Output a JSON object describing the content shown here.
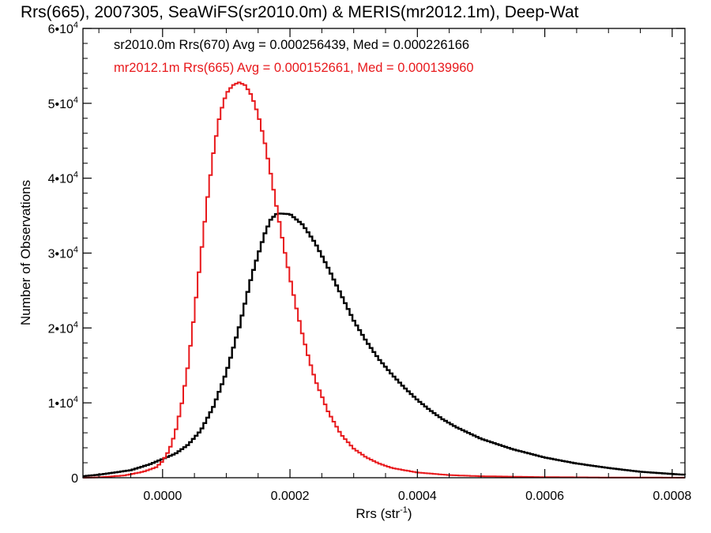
{
  "chart_data": {
    "type": "line",
    "title": "Rrs(665), 2007305, SeaWiFS(sr2010.0m) & MERIS(mr2012.1m), Deep-Wat",
    "xlabel": "Rrs (str",
    "xlabel_sup": "-1",
    "xlabel_end": ")",
    "ylabel": "Number of Observations",
    "xlim": [
      -0.000125,
      0.00082
    ],
    "ylim": [
      0,
      60000
    ],
    "grid": false,
    "x_ticks": [
      {
        "value": 0.0,
        "label": "0.0000"
      },
      {
        "value": 0.0002,
        "label": "0.0002"
      },
      {
        "value": 0.0004,
        "label": "0.0004"
      },
      {
        "value": 0.0006,
        "label": "0.0006"
      },
      {
        "value": 0.0008,
        "label": "0.0008"
      }
    ],
    "y_ticks": [
      {
        "value": 0,
        "label": "0",
        "exp": ""
      },
      {
        "value": 10000,
        "label": "1•10",
        "exp": "4"
      },
      {
        "value": 20000,
        "label": "2•10",
        "exp": "4"
      },
      {
        "value": 30000,
        "label": "3•10",
        "exp": "4"
      },
      {
        "value": 40000,
        "label": "4•10",
        "exp": "4"
      },
      {
        "value": 50000,
        "label": "5•10",
        "exp": "4"
      },
      {
        "value": 60000,
        "label": "6•10",
        "exp": "4"
      }
    ],
    "annotations": [
      {
        "text": "sr2010.0m Rrs(670) Avg = 0.000256439, Med = 0.000226166",
        "color": "#000000"
      },
      {
        "text": "mr2012.1m Rrs(665) Avg = 0.000152661, Med = 0.000139960",
        "color": "#e8191c"
      }
    ],
    "series": [
      {
        "color": "#000000",
        "x": [
          -0.000125,
          -0.0001,
          -5e-05,
          -2e-05,
          0.0,
          2e-05,
          4e-05,
          6e-05,
          8e-05,
          0.0001,
          0.00012,
          0.00014,
          0.00016,
          0.00017,
          0.00018,
          0.0002,
          0.00022,
          0.00024,
          0.00026,
          0.00028,
          0.0003,
          0.00032,
          0.00034,
          0.00036,
          0.00038,
          0.0004,
          0.00042,
          0.00044,
          0.00046,
          0.00048,
          0.0005,
          0.00055,
          0.0006,
          0.00065,
          0.0007,
          0.00075,
          0.0008,
          0.00082
        ],
        "y": [
          200,
          400,
          1000,
          1800,
          2500,
          3200,
          4400,
          6300,
          9500,
          14000,
          20000,
          27000,
          32500,
          34500,
          35300,
          35200,
          33800,
          31300,
          28000,
          24500,
          21000,
          18200,
          15800,
          13800,
          12000,
          10400,
          9000,
          7800,
          6800,
          6000,
          5200,
          3800,
          2700,
          1900,
          1300,
          800,
          500,
          400
        ]
      },
      {
        "color": "#e8191c",
        "x": [
          -0.000125,
          -0.0001,
          -6e-05,
          -3e-05,
          -1e-05,
          0.0,
          1e-05,
          2e-05,
          3e-05,
          4e-05,
          5e-05,
          6e-05,
          7e-05,
          8e-05,
          9e-05,
          0.0001,
          0.00011,
          0.00012,
          0.00013,
          0.00014,
          0.00015,
          0.00016,
          0.00017,
          0.00018,
          0.00019,
          0.0002,
          0.00021,
          0.00022,
          0.00023,
          0.00024,
          0.00026,
          0.00028,
          0.0003,
          0.00032,
          0.00034,
          0.00036,
          0.0004,
          0.00045,
          0.0005,
          0.0006,
          0.0007,
          0.00082
        ],
        "y": [
          0,
          50,
          300,
          800,
          1400,
          2200,
          3600,
          6000,
          9800,
          15000,
          22000,
          29500,
          37000,
          43500,
          48500,
          51300,
          52400,
          52800,
          52400,
          51000,
          48500,
          45000,
          40500,
          35700,
          31000,
          26700,
          22700,
          19000,
          15800,
          13000,
          8800,
          5800,
          3900,
          2700,
          1900,
          1300,
          700,
          350,
          200,
          80,
          30,
          10
        ]
      }
    ]
  }
}
